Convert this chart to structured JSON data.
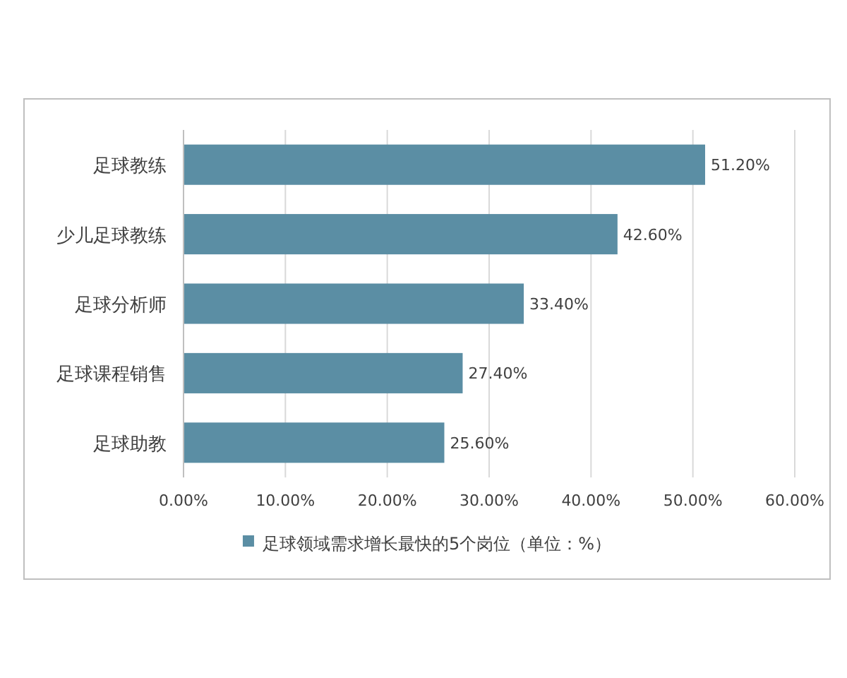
{
  "chart_data": {
    "type": "bar",
    "orientation": "horizontal",
    "categories": [
      "足球教练",
      "少儿足球教练",
      "足球分析师",
      "足球课程销售",
      "足球助教"
    ],
    "series": [
      {
        "name": "足球领域需求增长最快的5个岗位（单位：%）",
        "color": "#5b8ea4",
        "values": [
          51.2,
          42.6,
          33.4,
          27.4,
          25.6
        ],
        "value_labels": [
          "51.20%",
          "42.60%",
          "33.40%",
          "27.40%",
          "25.60%"
        ]
      }
    ],
    "xlim": [
      0,
      60
    ],
    "xticks": [
      {
        "value": 0,
        "label": "0.00%"
      },
      {
        "value": 10,
        "label": "10.00%"
      },
      {
        "value": 20,
        "label": "20.00%"
      },
      {
        "value": 30,
        "label": "30.00%"
      },
      {
        "value": 40,
        "label": "40.00%"
      },
      {
        "value": 50,
        "label": "50.00%"
      },
      {
        "value": 60,
        "label": "60.00%"
      }
    ],
    "grid": "x",
    "legend": "bottom"
  }
}
